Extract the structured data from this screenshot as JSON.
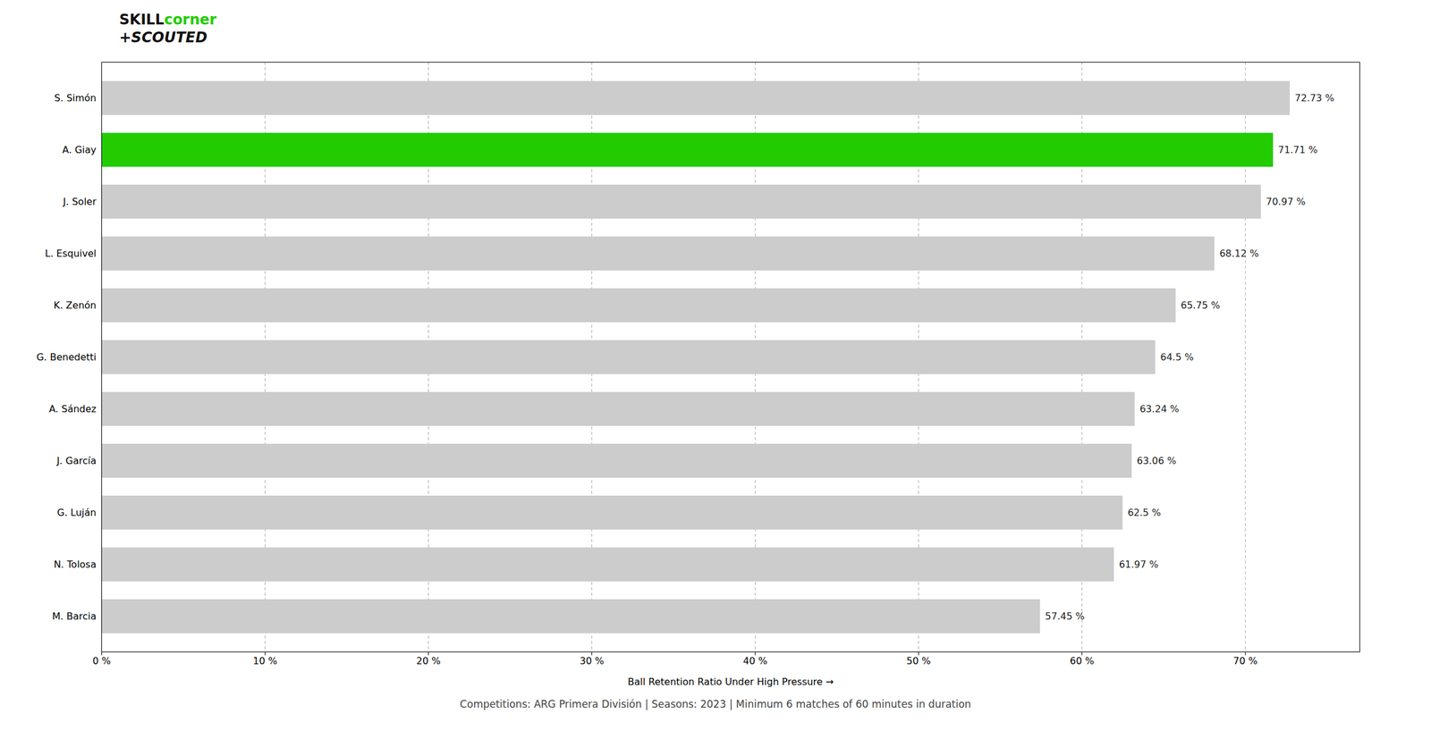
{
  "chart_data": {
    "type": "bar",
    "orientation": "horizontal",
    "subtitle": "Competitions: ARG Primera División | Seasons: 2023 | Minimum 6 matches of 60 minutes in duration",
    "xlabel": "Ball Retention Ratio Under High Pressure",
    "categories": [
      "M. Barcia",
      "N. Tolosa",
      "G. Luján",
      "J. García",
      "A. Sández",
      "G. Benedetti",
      "K. Zenón",
      "L. Esquivel",
      "J. Soler",
      "A. Giay",
      "S. Simón"
    ],
    "values": [
      57.45,
      61.97,
      62.5,
      63.06,
      63.24,
      64.5,
      65.75,
      68.12,
      70.97,
      71.71,
      72.73
    ],
    "value_labels": [
      "57.45 %",
      "61.97 %",
      "62.5 %",
      "63.06 %",
      "63.24 %",
      "64.5 %",
      "65.75 %",
      "68.12 %",
      "70.97 %",
      "71.71 %",
      "72.73 %"
    ],
    "colors": [
      "#cccccc",
      "#cccccc",
      "#cccccc",
      "#cccccc",
      "#cccccc",
      "#cccccc",
      "#cccccc",
      "#cccccc",
      "#cccccc",
      "#22cc00",
      "#cccccc"
    ],
    "xlim": [
      0,
      77
    ],
    "xticks": [
      {
        "value": 0,
        "label": "0 %"
      },
      {
        "value": 10,
        "label": "10 %"
      },
      {
        "value": 20,
        "label": "20 %"
      },
      {
        "value": 30,
        "label": "30 %"
      },
      {
        "value": 40,
        "label": "40 %"
      },
      {
        "value": 50,
        "label": "50 %"
      },
      {
        "value": 60,
        "label": "60 %"
      },
      {
        "value": 70,
        "label": "70 %"
      }
    ],
    "grid": true,
    "data_labels": true,
    "annotations": [
      {
        "text": "SKILL",
        "color": "#111111"
      },
      {
        "text": "corner",
        "color": "#22cc00"
      },
      {
        "text": "+SCOUTED",
        "color": "#111111"
      }
    ]
  }
}
